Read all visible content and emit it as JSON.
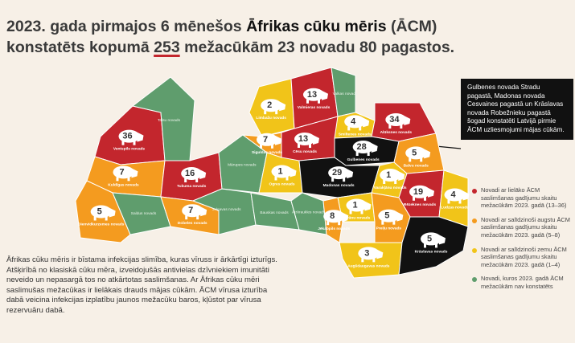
{
  "title": {
    "line1": [
      "2023. gada pirmajos 6 mēnešos ",
      "Āfrikas cūku mēris",
      " (ĀCM)"
    ],
    "line2": [
      "konstatēts kopumā ",
      "253",
      " mežacūkām 23 novadu 80 pagastos."
    ]
  },
  "callout": "Gulbenes novada Stradu pagastā, Madonas novada Cesvaines pagastā un Krāslavas novada Robežnieku pagastā šogad konstatēti Latvijā pirmie ĀCM uzliesmojumi mājas cūkām.",
  "body": "Āfrikas cūku mēris ir bīstama infekcijas slimība, kuras vīruss ir ārkārtīgi izturīgs. Atšķirībā no klasiskā cūku mēra, izveidojušās antivielas dzīvniekiem imunitāti neveido un nepasargā tos no atkārtotas saslimšanas. Ar Āfrikas cūku mēri saslimušas mežacūkas ir lielākais drauds mājas cūkām. ĀCM vīrusa izturība dabā veicina infekcijas izplatību jaunos mežacūku baros, kļūstot par vīrusa rezervuāru dabā.",
  "legend": [
    {
      "color": "#c3262d",
      "text": "Novadi ar lielāko ĀCM saslimšanas gadījumu skaitu mežacūkām 2023. gadā (13–36)"
    },
    {
      "color": "#f49b1f",
      "text": "Novadi ar salīdzinoši augstu ĀCM saslimšanas gadījumu skaitu mežacūkām 2023. gadā (5–8)"
    },
    {
      "color": "#f1c419",
      "text": "Novadi ar salīdzinoši zemu ĀCM saslimšanas gadījumu skaitu mežacūkām 2023. gadā (1–4)"
    },
    {
      "color": "#5f9d6d",
      "text": "Novadi, kuros 2023. gadā ĀCM mežacūkām nav konstatēts"
    }
  ],
  "outbreak_color": "#111111",
  "regions": [
    {
      "name": "Ventspils novads",
      "count": 36,
      "level": 0
    },
    {
      "name": "Talsu novads",
      "level": 3
    },
    {
      "name": "Kuldīgas novads",
      "count": 7,
      "level": 1
    },
    {
      "name": "Tukuma novads",
      "count": 16,
      "level": 0
    },
    {
      "name": "Dienvidkurzemes novads",
      "count": 5,
      "level": 1
    },
    {
      "name": "Saldus novads",
      "level": 3
    },
    {
      "name": "Dobeles novads",
      "count": 7,
      "level": 1
    },
    {
      "name": "Jelgavas novads",
      "level": 3
    },
    {
      "name": "Mārupes novads",
      "level": 3
    },
    {
      "name": "Bauskas novads",
      "level": 3
    },
    {
      "name": "Ogres novads",
      "count": 1,
      "level": 2
    },
    {
      "name": "Aizkraukles novads",
      "level": 3
    },
    {
      "name": "Limbažu novads",
      "count": 2,
      "level": 2
    },
    {
      "name": "Valmieras novads",
      "count": 13,
      "level": 0
    },
    {
      "name": "Valkas novads",
      "level": 3
    },
    {
      "name": "Siguldas novads",
      "count": 7,
      "level": 1
    },
    {
      "name": "Cēsu novads",
      "count": 13,
      "level": 0
    },
    {
      "name": "Smiltenes novads",
      "count": 4,
      "level": 2
    },
    {
      "name": "Alūksnes novads",
      "count": 34,
      "level": 0
    },
    {
      "name": "Gulbenes novads",
      "count": 28,
      "outbreak": true
    },
    {
      "name": "Madonas novads",
      "count": 29,
      "outbreak": true
    },
    {
      "name": "Varakļānu novads",
      "count": 1,
      "level": 2
    },
    {
      "name": "Balvu novads",
      "count": 5,
      "level": 1
    },
    {
      "name": "Rēzeknes novads",
      "count": 19,
      "level": 0
    },
    {
      "name": "Ludzas novads",
      "count": 4,
      "level": 2
    },
    {
      "name": "Līvānu novads",
      "count": 1,
      "level": 2
    },
    {
      "name": "Jēkabpils novads",
      "count": 8,
      "level": 1
    },
    {
      "name": "Preiļu novads",
      "count": 5,
      "level": 1
    },
    {
      "name": "Augšdaugavas novads",
      "count": 3,
      "level": 2
    },
    {
      "name": "Krāslavas novads",
      "count": 5,
      "outbreak": true
    }
  ]
}
